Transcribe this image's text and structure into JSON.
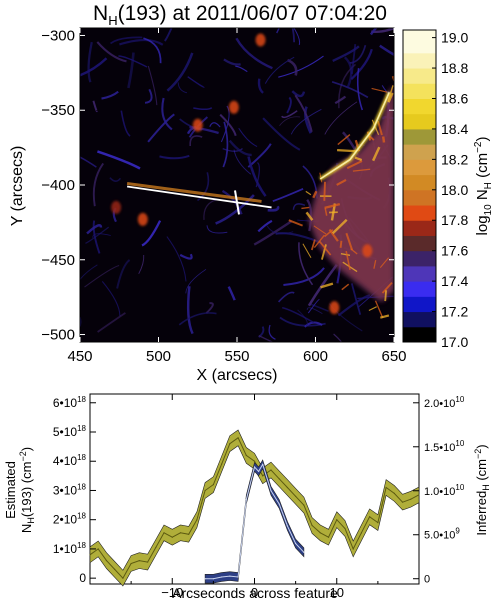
{
  "colors": {
    "band_fill": "#b0ae3a",
    "band_line": "#5c5a10",
    "inferred_fill": "#2d3f86",
    "inferred_line": "#c9d3ee",
    "map_background": "#05010a",
    "map_filament": "#2a1f8e",
    "map_bright": "#f07a18"
  },
  "chart_data": [
    {
      "type": "heatmap",
      "title_main": "N",
      "title_sub": "H",
      "title_rest": "(193) at 2011/06/07 07:04:20",
      "xlabel": "X (arcsecs)",
      "ylabel": "Y (arcsecs)",
      "xlim": [
        450,
        650
      ],
      "ylim": [
        -505,
        -295
      ],
      "x_ticks": [
        "450",
        "500",
        "550",
        "600",
        "650"
      ],
      "y_ticks": [
        "−300",
        "−350",
        "−400",
        "−450",
        "−500"
      ],
      "slit": {
        "start": [
          480,
          -401
        ],
        "end": [
          572,
          -415
        ],
        "cross_x": 550
      },
      "colorbar": {
        "label_pre": "log",
        "label_sub": "10",
        "label_mid": " N",
        "label_sub2": "H",
        "label_unit": " (cm",
        "label_sup": "−2",
        "label_end": ")",
        "range": [
          17.0,
          19.05
        ],
        "ticks": [
          "19.0",
          "18.8",
          "18.6",
          "18.4",
          "18.2",
          "18.0",
          "17.8",
          "17.6",
          "17.4",
          "17.2",
          "17.0"
        ],
        "levels": [
          {
            "lo": 17.0,
            "hi": 17.1,
            "color": "#000000"
          },
          {
            "lo": 17.1,
            "hi": 17.2,
            "color": "#101060"
          },
          {
            "lo": 17.2,
            "hi": 17.3,
            "color": "#1016c8"
          },
          {
            "lo": 17.3,
            "hi": 17.4,
            "color": "#3a2cf0"
          },
          {
            "lo": 17.4,
            "hi": 17.5,
            "color": "#4e36b8"
          },
          {
            "lo": 17.5,
            "hi": 17.6,
            "color": "#3c2368"
          },
          {
            "lo": 17.6,
            "hi": 17.7,
            "color": "#5a2a2a"
          },
          {
            "lo": 17.7,
            "hi": 17.8,
            "color": "#9a2818"
          },
          {
            "lo": 17.8,
            "hi": 17.9,
            "color": "#e04a14"
          },
          {
            "lo": 17.9,
            "hi": 18.0,
            "color": "#cf7424"
          },
          {
            "lo": 18.0,
            "hi": 18.1,
            "color": "#d28a24"
          },
          {
            "lo": 18.1,
            "hi": 18.2,
            "color": "#dc9a3c"
          },
          {
            "lo": 18.2,
            "hi": 18.3,
            "color": "#cfa24e"
          },
          {
            "lo": 18.3,
            "hi": 18.4,
            "color": "#9e9838"
          },
          {
            "lo": 18.4,
            "hi": 18.5,
            "color": "#e6ca1e"
          },
          {
            "lo": 18.5,
            "hi": 18.6,
            "color": "#f1d72e"
          },
          {
            "lo": 18.6,
            "hi": 18.7,
            "color": "#f4e25c"
          },
          {
            "lo": 18.7,
            "hi": 18.8,
            "color": "#f7ea8a"
          },
          {
            "lo": 18.8,
            "hi": 18.9,
            "color": "#faf2b8"
          },
          {
            "lo": 18.9,
            "hi": 19.05,
            "color": "#fdfbe0"
          }
        ]
      },
      "features": {
        "bright_region": [
          [
            601,
            -405
          ],
          [
            612,
            -388
          ],
          [
            628,
            -378
          ],
          [
            641,
            -362
          ],
          [
            648,
            -336
          ],
          [
            650,
            -334
          ],
          [
            650,
            -470
          ],
          [
            642,
            -478
          ],
          [
            630,
            -468
          ],
          [
            614,
            -455
          ],
          [
            603,
            -442
          ],
          [
            596,
            -424
          ]
        ],
        "bright_ridge": [
          [
            603,
            -396
          ],
          [
            622,
            -383
          ],
          [
            637,
            -362
          ],
          [
            647,
            -338
          ]
        ],
        "spots": [
          {
            "x": 525,
            "y": -360,
            "level": 17.85
          },
          {
            "x": 548,
            "y": -348,
            "level": 17.8
          },
          {
            "x": 565,
            "y": -303,
            "level": 17.8
          },
          {
            "x": 490,
            "y": -423,
            "level": 17.85
          },
          {
            "x": 473,
            "y": -415,
            "level": 17.75
          },
          {
            "x": 633,
            "y": -444,
            "level": 17.85
          },
          {
            "x": 612,
            "y": -482,
            "level": 17.8
          }
        ]
      }
    },
    {
      "type": "line",
      "xlabel": "Arcseconds across feature",
      "ylabel_left_line1": "Estimated",
      "ylabel_left_line2_pre": "N",
      "ylabel_left_line2_sub": "H",
      "ylabel_left_line2_post": "(193) (cm",
      "ylabel_left_line2_sup": "−2",
      "ylabel_left_line2_end": ")",
      "ylabel_right_pre": "Inferred",
      "ylabel_right_sub": "H",
      "ylabel_right_post": " (cm",
      "ylabel_right_sup": "−2",
      "ylabel_right_end": ")",
      "xlim": [
        -20,
        20
      ],
      "ylim_left": [
        -0.2,
        6.3
      ],
      "ylim_right": [
        -0.06,
        2.1
      ],
      "x_ticks": [
        {
          "v": -10,
          "label": "−10"
        },
        {
          "v": 0,
          "label": "0"
        },
        {
          "v": 10,
          "label": "10"
        }
      ],
      "y_ticks_left": [
        {
          "v": 0,
          "mant": "0",
          "exp": ""
        },
        {
          "v": 1,
          "mant": "1•10",
          "exp": "18"
        },
        {
          "v": 2,
          "mant": "2•10",
          "exp": "18"
        },
        {
          "v": 3,
          "mant": "3•10",
          "exp": "18"
        },
        {
          "v": 4,
          "mant": "4•10",
          "exp": "18"
        },
        {
          "v": 5,
          "mant": "5•10",
          "exp": "18"
        },
        {
          "v": 6,
          "mant": "6•10",
          "exp": "18"
        }
      ],
      "y_ticks_right": [
        {
          "v": 0,
          "mant": "0",
          "exp": ""
        },
        {
          "v": 0.5,
          "mant": "5.0•10",
          "exp": "9"
        },
        {
          "v": 1.0,
          "mant": "1.0•10",
          "exp": "10"
        },
        {
          "v": 1.5,
          "mant": "1.5•10",
          "exp": "10"
        },
        {
          "v": 2.0,
          "mant": "2.0•10",
          "exp": "10"
        }
      ],
      "series": [
        {
          "axis": "left",
          "x": [
            -20,
            -19,
            -18,
            -17,
            -16,
            -15,
            -14,
            -13,
            -12,
            -11,
            -10,
            -9,
            -8,
            -7,
            -6,
            -5,
            -4,
            -3,
            -2,
            -1,
            0,
            1,
            2,
            3,
            4,
            5,
            6,
            7,
            8,
            9,
            10,
            11,
            12,
            13,
            14,
            15,
            16,
            17,
            18,
            19,
            20
          ],
          "values": [
            0.8,
            1.0,
            0.6,
            0.3,
            0.0,
            0.5,
            0.6,
            0.55,
            1.05,
            1.55,
            1.4,
            1.55,
            1.5,
            2.0,
            3.0,
            3.2,
            3.9,
            4.6,
            4.8,
            4.2,
            4.0,
            3.5,
            3.7,
            3.4,
            3.1,
            2.8,
            2.5,
            1.8,
            1.55,
            1.4,
            2.0,
            1.7,
            1.0,
            1.55,
            2.1,
            1.9,
            3.1,
            2.9,
            2.6,
            2.7,
            2.85
          ],
          "band": 0.27
        },
        {
          "axis": "right",
          "x": [
            -6,
            -5,
            -4,
            -3,
            -2,
            -1,
            0,
            0.5,
            1,
            2,
            3,
            4,
            5,
            6
          ],
          "values": [
            0.0,
            0.0,
            0.02,
            0.03,
            0.02,
            0.9,
            1.27,
            1.22,
            1.3,
            1.0,
            0.85,
            0.6,
            0.4,
            0.3
          ],
          "band": 0.05
        }
      ]
    }
  ]
}
